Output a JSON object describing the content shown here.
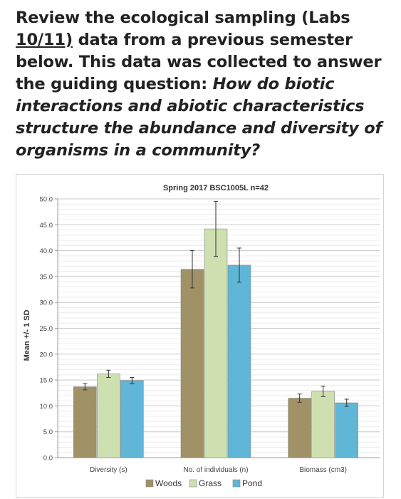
{
  "question": {
    "line1": "Review the ecological sampling (Labs",
    "line2_underlined": "10/11)",
    "line2_rest": " data from a previous semester",
    "line3": "below. This data was collected to answer",
    "line4_plain": "the guiding question: ",
    "line4_italic": "How do biotic",
    "line5": "interactions and abiotic characteristics",
    "line6": "structure the abundance and diversity of",
    "line7": "organisms in a community?"
  },
  "chart_data": {
    "type": "bar",
    "title": "Spring 2017 BSC1005L n=42",
    "ylabel": "Mean +/- 1 SD",
    "xlabel": "",
    "ylim": [
      0,
      50
    ],
    "yticks": [
      "0.0",
      "5.0",
      "10.0",
      "15.0",
      "20.0",
      "25.0",
      "30.0",
      "35.0",
      "40.0",
      "45.0",
      "50.0"
    ],
    "grid": true,
    "legend_position": "bottom",
    "categories": [
      "Diversity (s)",
      "No. of individuals (n)",
      "Biomass (cm3)"
    ],
    "series": [
      {
        "name": "Woods",
        "color": "#a09266",
        "values": [
          13.7,
          36.4,
          11.5
        ],
        "errors": [
          0.6,
          3.6,
          0.8
        ]
      },
      {
        "name": "Grass",
        "color": "#cfe0b0",
        "values": [
          16.2,
          44.2,
          12.8
        ],
        "errors": [
          0.7,
          5.3,
          1.0
        ]
      },
      {
        "name": "Pond",
        "color": "#5fb6d6",
        "values": [
          14.9,
          37.2,
          10.6
        ],
        "errors": [
          0.6,
          3.3,
          0.7
        ]
      }
    ]
  }
}
